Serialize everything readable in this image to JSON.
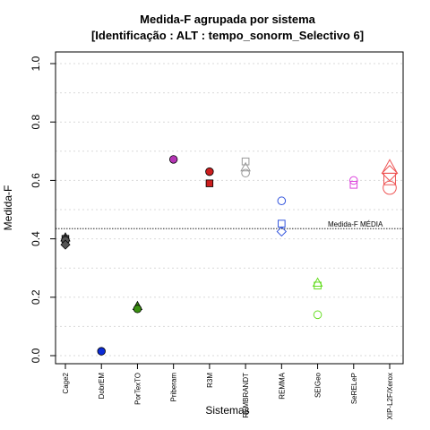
{
  "chart_data": {
    "type": "scatter",
    "title_line1": "Medida-F agrupada por sistema",
    "title_line2": "[Identificação : ALT : tempo_sonorm_Selectivo 6]",
    "xlabel": "Sistemas",
    "ylabel": "Medida-F",
    "ylim": [
      0,
      1
    ],
    "yticks": [
      "0.0",
      "0.2",
      "0.4",
      "0.6",
      "0.8",
      "1.0"
    ],
    "categories": [
      "Cage2",
      "DobrEM",
      "PorTexTO",
      "Priberam",
      "R3M",
      "REMBRANDT",
      "REMMA",
      "SEIGeo",
      "SeRELeP",
      "XIP-L2F/Xerox"
    ],
    "grid": true,
    "reference_line": {
      "label": "Medida-F MÉDIA",
      "value": 0.435
    },
    "points": [
      {
        "category": "Cage2",
        "value": 0.405,
        "shape": "triangle",
        "color": "#555555",
        "filled": true
      },
      {
        "category": "Cage2",
        "value": 0.4,
        "shape": "square",
        "color": "#555555",
        "filled": true
      },
      {
        "category": "Cage2",
        "value": 0.395,
        "shape": "circle",
        "color": "#555555",
        "filled": true
      },
      {
        "category": "Cage2",
        "value": 0.38,
        "shape": "diamond",
        "color": "#555555",
        "filled": true
      },
      {
        "category": "DobrEM",
        "value": 0.015,
        "shape": "circle",
        "color": "#0b2bd6",
        "filled": true
      },
      {
        "category": "PorTexTO",
        "value": 0.17,
        "shape": "triangle",
        "color": "#3a8f10",
        "filled": true
      },
      {
        "category": "PorTexTO",
        "value": 0.16,
        "shape": "circle",
        "color": "#3a8f10",
        "filled": true
      },
      {
        "category": "Priberam",
        "value": 0.672,
        "shape": "circle",
        "color": "#b535b5",
        "filled": true
      },
      {
        "category": "R3M",
        "value": 0.63,
        "shape": "circle",
        "color": "#cc1e1e",
        "filled": true
      },
      {
        "category": "R3M",
        "value": 0.59,
        "shape": "square",
        "color": "#cc1e1e",
        "filled": true
      },
      {
        "category": "REMBRANDT",
        "value": 0.665,
        "shape": "square",
        "color": "#999999",
        "filled": false
      },
      {
        "category": "REMBRANDT",
        "value": 0.645,
        "shape": "triangle",
        "color": "#999999",
        "filled": false
      },
      {
        "category": "REMBRANDT",
        "value": 0.625,
        "shape": "circle",
        "color": "#999999",
        "filled": false
      },
      {
        "category": "REMMA",
        "value": 0.53,
        "shape": "circle",
        "color": "#3355dd",
        "filled": false
      },
      {
        "category": "REMMA",
        "value": 0.452,
        "shape": "square",
        "color": "#3355dd",
        "filled": false
      },
      {
        "category": "REMMA",
        "value": 0.425,
        "shape": "diamond",
        "color": "#3355dd",
        "filled": false
      },
      {
        "category": "SEIGeo",
        "value": 0.25,
        "shape": "triangle",
        "color": "#66dd22",
        "filled": false
      },
      {
        "category": "SEIGeo",
        "value": 0.24,
        "shape": "square",
        "color": "#66dd22",
        "filled": false
      },
      {
        "category": "SEIGeo",
        "value": 0.14,
        "shape": "circle",
        "color": "#66dd22",
        "filled": false
      },
      {
        "category": "SeRELeP",
        "value": 0.6,
        "shape": "circle",
        "color": "#dd44dd",
        "filled": false
      },
      {
        "category": "SeRELeP",
        "value": 0.585,
        "shape": "square",
        "color": "#dd44dd",
        "filled": false
      },
      {
        "category": "XIP-L2F/Xerox",
        "value": 0.645,
        "shape": "triangle",
        "color": "#ee5555",
        "filled": false,
        "large": true
      },
      {
        "category": "XIP-L2F/Xerox",
        "value": 0.625,
        "shape": "diamond",
        "color": "#ee5555",
        "filled": false,
        "large": true
      },
      {
        "category": "XIP-L2F/Xerox",
        "value": 0.605,
        "shape": "square",
        "color": "#ee5555",
        "filled": false,
        "large": true
      },
      {
        "category": "XIP-L2F/Xerox",
        "value": 0.575,
        "shape": "circle",
        "color": "#ee5555",
        "filled": false,
        "large": true
      }
    ]
  }
}
